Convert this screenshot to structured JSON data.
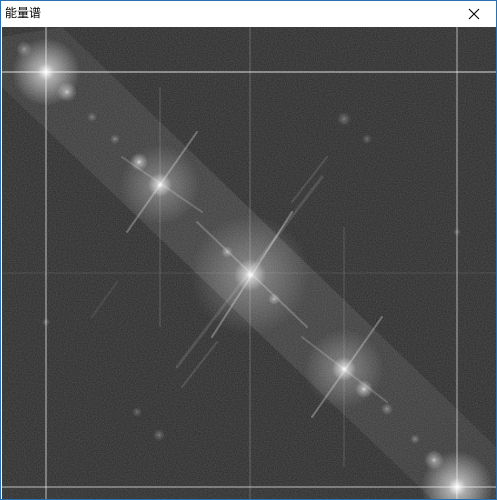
{
  "window": {
    "title": "能量谱",
    "close_icon": "close-icon"
  },
  "image": {
    "subject": "spectrum-image",
    "colors": {
      "background": "#2a2a2a",
      "glow": "#ffffff",
      "border": "#2a6fb0"
    }
  }
}
